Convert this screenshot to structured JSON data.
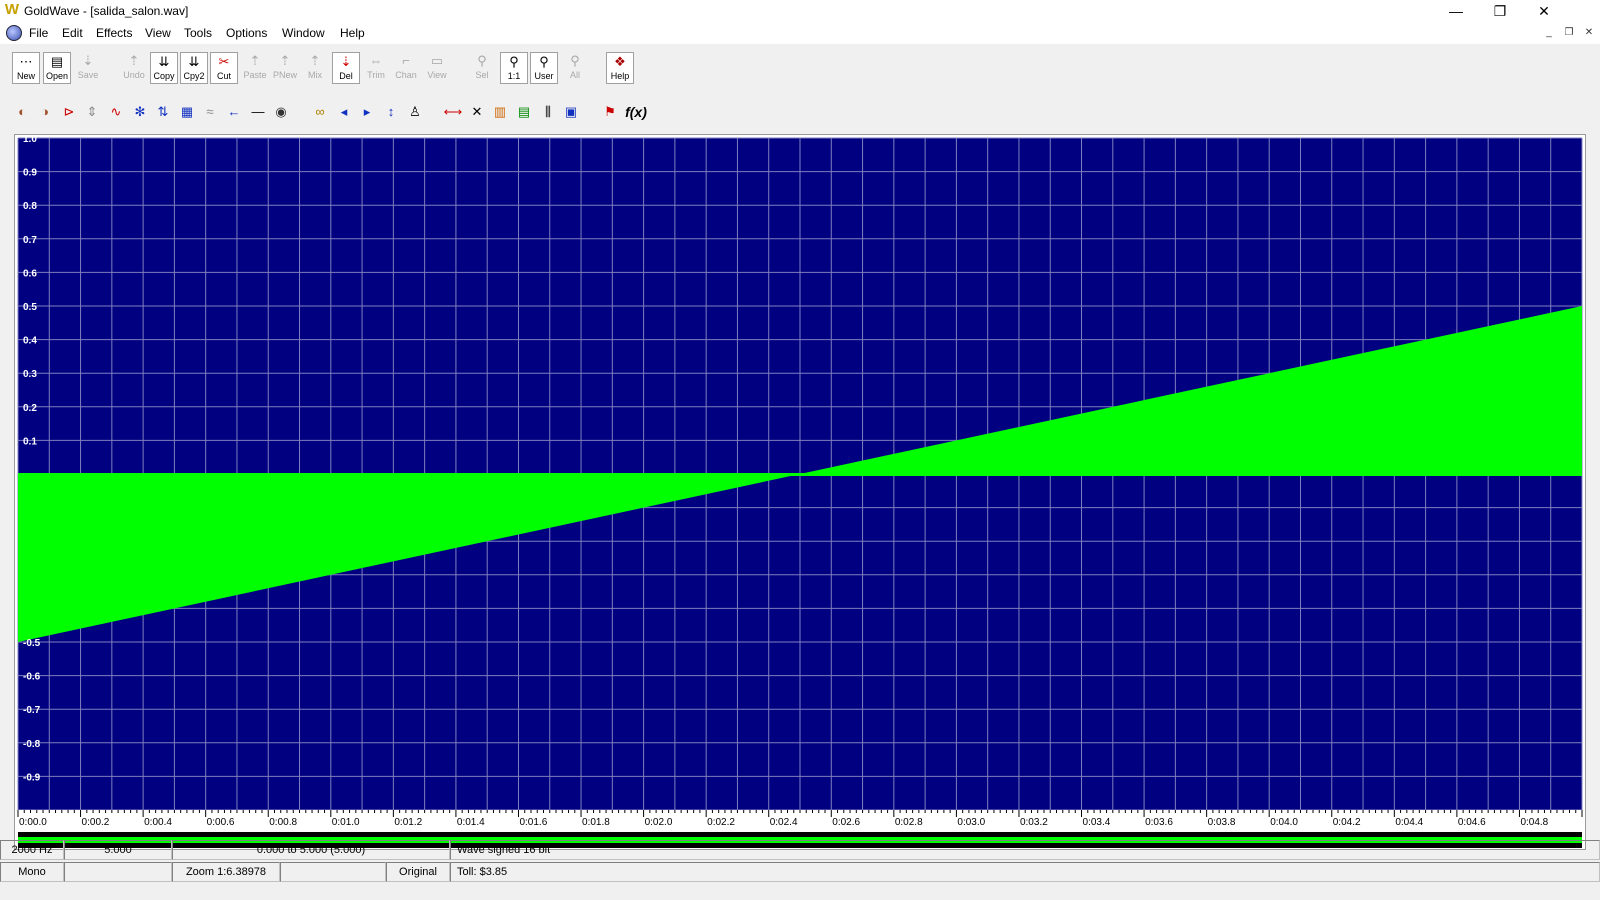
{
  "window": {
    "title": "GoldWave - [salida_salon.wav]",
    "app_icon": "W"
  },
  "menu": [
    "File",
    "Edit",
    "Effects",
    "View",
    "Tools",
    "Options",
    "Window",
    "Help"
  ],
  "toolbar1": [
    {
      "label": "New",
      "icon": "new-icon",
      "enabled": true
    },
    {
      "label": "Open",
      "icon": "open-icon",
      "enabled": true
    },
    {
      "label": "Save",
      "icon": "save-icon",
      "enabled": false
    },
    {
      "label": "Undo",
      "icon": "undo-icon",
      "enabled": false
    },
    {
      "label": "Copy",
      "icon": "copy-icon",
      "enabled": true
    },
    {
      "label": "Cpy2",
      "icon": "copy2-icon",
      "enabled": true
    },
    {
      "label": "Cut",
      "icon": "cut-icon",
      "enabled": true
    },
    {
      "label": "Paste",
      "icon": "paste-icon",
      "enabled": false
    },
    {
      "label": "PNew",
      "icon": "paste-new-icon",
      "enabled": false
    },
    {
      "label": "Mix",
      "icon": "mix-icon",
      "enabled": false
    },
    {
      "label": "Del",
      "icon": "delete-icon",
      "enabled": true
    },
    {
      "label": "Trim",
      "icon": "trim-icon",
      "enabled": false
    },
    {
      "label": "Chan",
      "icon": "channel-icon",
      "enabled": false
    },
    {
      "label": "View",
      "icon": "view-icon",
      "enabled": false
    },
    {
      "label": "Sel",
      "icon": "zoom-select-icon",
      "enabled": false
    },
    {
      "label": "1:1",
      "icon": "zoom-1-1-icon",
      "enabled": true
    },
    {
      "label": "User",
      "icon": "zoom-user-icon",
      "enabled": true
    },
    {
      "label": "All",
      "icon": "zoom-all-icon",
      "enabled": false
    },
    {
      "label": "Help",
      "icon": "help-book-icon",
      "enabled": true
    }
  ],
  "toolbar2": [
    {
      "icon": "fade-in-icon",
      "glyph": "◐"
    },
    {
      "icon": "fade-out-icon",
      "glyph": "◑"
    },
    {
      "icon": "offset-icon",
      "glyph": "⊳"
    },
    {
      "icon": "compress-icon",
      "glyph": "⇕"
    },
    {
      "icon": "doppler-icon",
      "glyph": "∿"
    },
    {
      "icon": "equalizer-icon",
      "glyph": "✻"
    },
    {
      "icon": "invert-icon",
      "glyph": "⇅"
    },
    {
      "icon": "mechanize-icon",
      "glyph": "▦"
    },
    {
      "icon": "noise-reduction-icon",
      "glyph": "≈"
    },
    {
      "icon": "reverse-icon",
      "glyph": "←"
    },
    {
      "icon": "silence-icon",
      "glyph": "—"
    },
    {
      "icon": "volume-icon",
      "glyph": "◉"
    },
    {
      "icon": "echo-icon",
      "glyph": "∞"
    },
    {
      "icon": "pan-left-icon",
      "glyph": "◂"
    },
    {
      "icon": "pan-right-icon",
      "glyph": "▸"
    },
    {
      "icon": "pitch-icon",
      "glyph": "↕"
    },
    {
      "icon": "playback-rate-icon",
      "glyph": "♙"
    },
    {
      "icon": "resample-icon",
      "glyph": "⟷"
    },
    {
      "icon": "flanger-icon",
      "glyph": "✕"
    },
    {
      "icon": "spectrum-icon",
      "glyph": "▥"
    },
    {
      "icon": "bars-icon",
      "glyph": "▤"
    },
    {
      "icon": "filter-icon",
      "glyph": "⫼"
    },
    {
      "icon": "graph-icon",
      "glyph": "▣"
    },
    {
      "icon": "marker-icon",
      "glyph": "⚑"
    },
    {
      "icon": "expression-icon",
      "glyph": "f(x)"
    }
  ],
  "colors": {
    "wave_bg": "#000080",
    "wave_fg": "#00ff00",
    "grid": "#7f7fbf",
    "label": "#ffffff"
  },
  "chart_data": {
    "type": "area",
    "title": "",
    "xlabel": "",
    "ylabel": "",
    "x_ticks": [
      "0:00.0",
      "0:00.2",
      "0:00.4",
      "0:00.6",
      "0:00.8",
      "0:01.0",
      "0:01.2",
      "0:01.4",
      "0:01.6",
      "0:01.8",
      "0:02.0",
      "0:02.2",
      "0:02.4",
      "0:02.6",
      "0:02.8",
      "0:03.0",
      "0:03.2",
      "0:03.4",
      "0:03.6",
      "0:03.8",
      "0:04.0",
      "0:04.2",
      "0:04.4",
      "0:04.6",
      "0:04.8"
    ],
    "y_ticks": [
      "1.0",
      "0.9",
      "0.8",
      "0.7",
      "0.6",
      "0.5",
      "0.4",
      "0.3",
      "0.2",
      "0.1",
      "-0.5",
      "-0.6",
      "-0.7",
      "-0.8",
      "-0.9"
    ],
    "y_tick_values": [
      1.0,
      0.9,
      0.8,
      0.7,
      0.6,
      0.5,
      0.4,
      0.3,
      0.2,
      0.1,
      -0.5,
      -0.6,
      -0.7,
      -0.8,
      -0.9
    ],
    "xlim": [
      0,
      5.0
    ],
    "ylim": [
      -1.0,
      1.0
    ],
    "envelope": {
      "x": [
        0,
        2.5,
        5.0
      ],
      "value": [
        -0.5,
        0,
        0.5
      ]
    },
    "grid": true
  },
  "status": {
    "rate": "2000 Hz",
    "length": "5.000",
    "selection": "0.000 to 5.000  (5.000)",
    "format": "Wave signed 16 bit",
    "channels": "Mono",
    "zoom": "Zoom 1:6.38978",
    "mode": "Original",
    "toll": "Toll: $3.85"
  }
}
